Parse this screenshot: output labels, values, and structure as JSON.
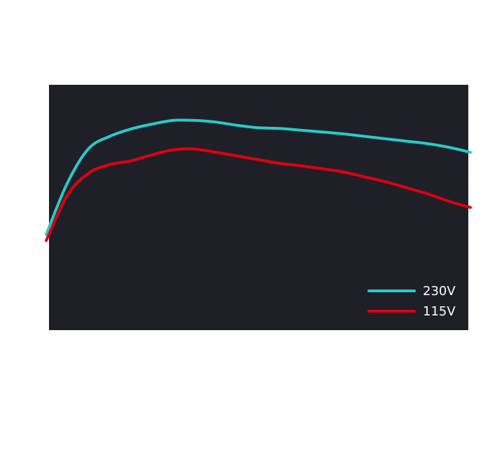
{
  "chart_data": {
    "type": "line",
    "title": "",
    "xlabel": "",
    "ylabel": "",
    "xlim": [
      0,
      100
    ],
    "ylim": [
      0,
      100
    ],
    "grid": false,
    "legend_position": "bottom-right",
    "background_color": "#1f1f28",
    "series": [
      {
        "name": "230V",
        "color": "#27cbc9",
        "x": [
          0,
          5,
          10,
          15,
          20,
          25,
          30,
          35,
          40,
          45,
          50,
          55,
          60,
          65,
          70,
          75,
          80,
          85,
          90,
          95,
          100
        ],
        "y": [
          39,
          60,
          74,
          79,
          82,
          84,
          85.5,
          85.5,
          84.8,
          83.5,
          82.5,
          82.2,
          81.5,
          80.8,
          80,
          79,
          78,
          77,
          76,
          74.5,
          72.5
        ]
      },
      {
        "name": "115V",
        "color": "#e0000f",
        "x": [
          0,
          5,
          10,
          15,
          20,
          25,
          30,
          35,
          40,
          45,
          50,
          55,
          60,
          65,
          70,
          75,
          80,
          85,
          90,
          95,
          100
        ],
        "y": [
          36.5,
          55,
          64,
          67.5,
          69,
          71.5,
          73.5,
          73.8,
          72.5,
          71,
          69.5,
          68,
          67,
          65.8,
          64.5,
          62.5,
          60.5,
          58,
          55.5,
          52.5,
          50
        ]
      }
    ]
  }
}
